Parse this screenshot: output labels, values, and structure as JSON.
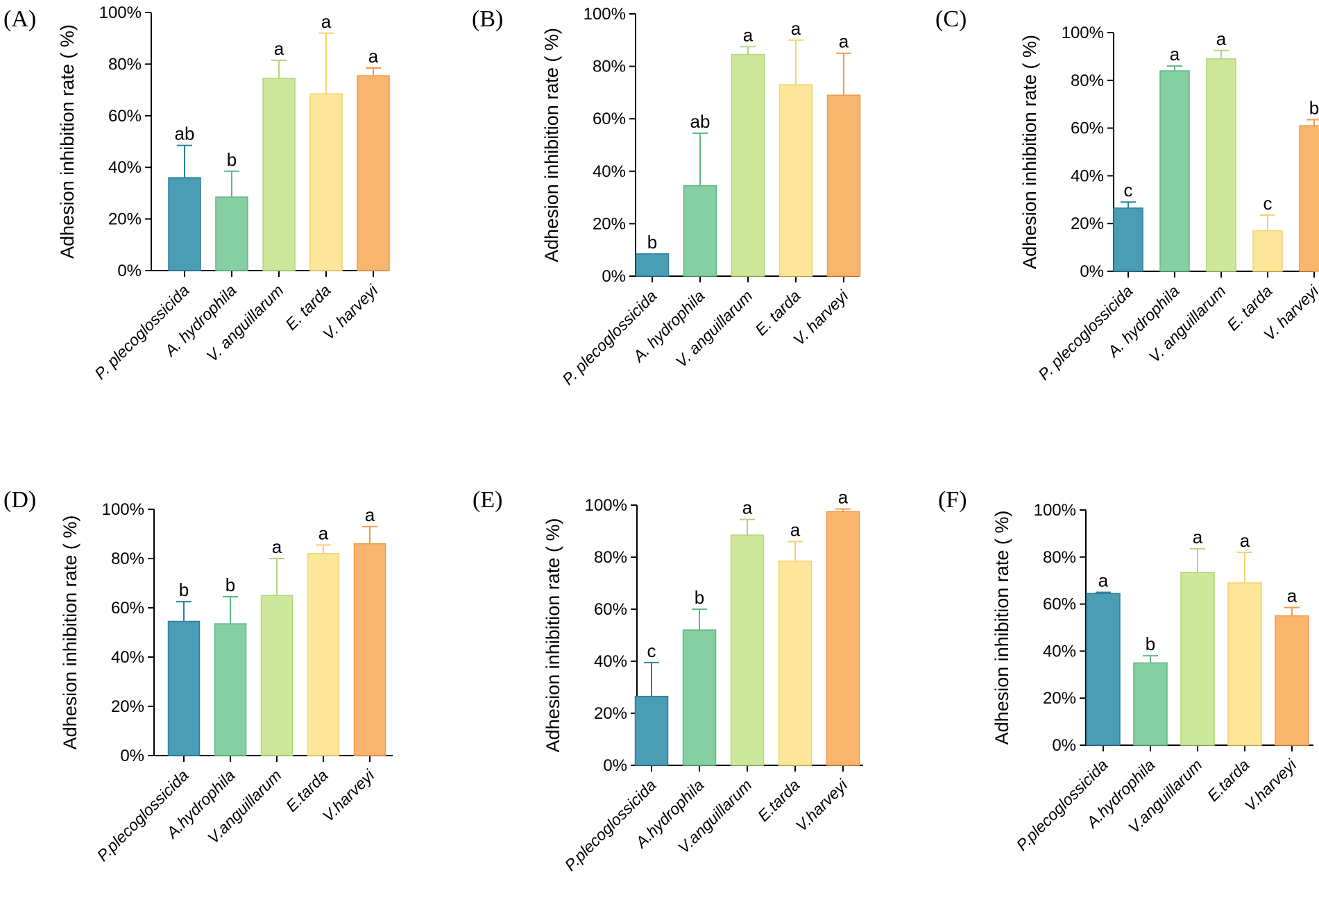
{
  "colors": {
    "P. plecoglossicida": "#4a9db5",
    "A. hydrophila": "#86cfa2",
    "V. anguillarum": "#cde79b",
    "E. tarda": "#fde69a",
    "V. harveyi": "#f9b46e",
    "errorbar_dark": {
      "P. plecoglossicida": "#2d7f97",
      "A. hydrophila": "#5fb784",
      "V. anguillarum": "#b0d67a",
      "E. tarda": "#f2d36e",
      "V. harveyi": "#ef9a48"
    }
  },
  "chart_data": [
    {
      "panel": "(A)",
      "type": "bar",
      "ylabel": "Adhesion inhibition rate ( %)",
      "ylim": [
        0,
        100
      ],
      "yticks": [
        "0%",
        "20%",
        "40%",
        "60%",
        "80%",
        "100%"
      ],
      "categories": [
        "P. plecoglossicida",
        "A. hydrophila",
        "V. anguillarum",
        "E. tarda",
        "V. harveyi"
      ],
      "values": [
        36,
        28.5,
        74.5,
        68.5,
        75.5
      ],
      "errors": [
        12.5,
        10,
        7,
        23.5,
        3
      ],
      "significance": [
        "ab",
        "b",
        "a",
        "a",
        "a"
      ]
    },
    {
      "panel": "(B)",
      "type": "bar",
      "ylabel": "Adhesion inhibition rate ( %)",
      "ylim": [
        0,
        100
      ],
      "yticks": [
        "0%",
        "20%",
        "40%",
        "60%",
        "80%",
        "100%"
      ],
      "categories": [
        "P. plecoglossicida",
        "A. hydrophila",
        "V. anguillarum",
        "E. tarda",
        "V. harveyi"
      ],
      "values": [
        8.5,
        34.5,
        84.5,
        73,
        69
      ],
      "errors": [
        0,
        20,
        3,
        17,
        16
      ],
      "significance": [
        "b",
        "ab",
        "a",
        "a",
        "a"
      ]
    },
    {
      "panel": "(C)",
      "type": "bar",
      "ylabel": "Adhesion inhibition rate ( %)",
      "ylim": [
        0,
        100
      ],
      "yticks": [
        "0%",
        "20%",
        "40%",
        "60%",
        "80%",
        "100%"
      ],
      "categories": [
        "P. plecoglossicida",
        "A. hydrophila",
        "V. anguillarum",
        "E. tarda",
        "V. harveyi"
      ],
      "values": [
        26.5,
        84,
        89,
        17,
        61
      ],
      "errors": [
        2.5,
        2,
        3.5,
        6.5,
        2.5
      ],
      "significance": [
        "c",
        "a",
        "a",
        "c",
        "b"
      ]
    },
    {
      "panel": "(D)",
      "type": "bar",
      "ylabel": "Adhesion inhibition rate ( %)",
      "ylim": [
        0,
        100
      ],
      "yticks": [
        "0%",
        "20%",
        "40%",
        "60%",
        "80%",
        "100%"
      ],
      "categories": [
        "P.plecoglossicida",
        "A.hydrophila",
        "V.anguillarum",
        "E.tarda",
        "V.harveyi"
      ],
      "values": [
        54.5,
        53.5,
        65,
        82,
        86
      ],
      "errors": [
        8,
        11,
        15,
        3.5,
        7
      ],
      "significance": [
        "b",
        "b",
        "a",
        "a",
        "a"
      ]
    },
    {
      "panel": "(E)",
      "type": "bar",
      "ylabel": "Adhesion inhibition rate ( %)",
      "ylim": [
        0,
        100
      ],
      "yticks": [
        "0%",
        "20%",
        "40%",
        "60%",
        "80%",
        "100%"
      ],
      "categories": [
        "P.plecoglossicida",
        "A.hydrophila",
        "V.anguillarum",
        "E.tarda",
        "V.harveyi"
      ],
      "values": [
        26.5,
        52,
        88.5,
        78.5,
        97.5
      ],
      "errors": [
        13,
        8,
        6,
        7.5,
        1
      ],
      "significance": [
        "c",
        "b",
        "a",
        "a",
        "a"
      ]
    },
    {
      "panel": "(F)",
      "type": "bar",
      "ylabel": "Adhesion inhibition rate ( %)",
      "ylim": [
        0,
        100
      ],
      "yticks": [
        "0%",
        "20%",
        "40%",
        "60%",
        "80%",
        "100%"
      ],
      "categories": [
        "P.plecoglossicida",
        "A.hydrophila",
        "V.anguillarum",
        "E.tarda",
        "V.harveyi"
      ],
      "values": [
        64.5,
        35,
        73.5,
        69,
        55
      ],
      "errors": [
        0.5,
        3,
        10,
        13,
        3.5
      ],
      "significance": [
        "a",
        "b",
        "a",
        "a",
        "a"
      ]
    }
  ]
}
